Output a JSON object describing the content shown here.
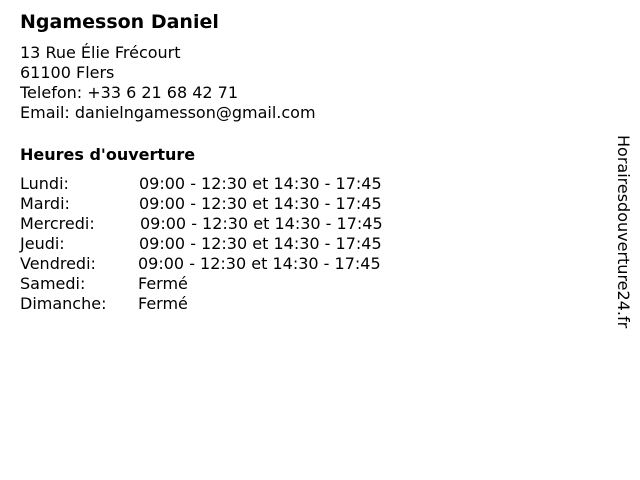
{
  "business": {
    "name": "Ngamesson Daniel",
    "address_line1": "13 Rue Élie Frécourt",
    "address_line2": "61100 Flers",
    "phone": "Telefon: +33 6 21 68 42 71",
    "email": "Email: danielngamesson@gmail.com"
  },
  "hours": {
    "heading": "Heures d'ouverture",
    "days": [
      {
        "day": "Lundi:",
        "time": "09:00 - 12:30 et 14:30 - 17:45"
      },
      {
        "day": "Mardi:",
        "time": "09:00 - 12:30 et 14:30 - 17:45"
      },
      {
        "day": "Mercredi:",
        "time": "09:00 - 12:30 et 14:30 - 17:45"
      },
      {
        "day": "Jeudi:",
        "time": "09:00 - 12:30 et 14:30 - 17:45"
      },
      {
        "day": "Vendredi:",
        "time": "09:00 - 12:30 et 14:30 - 17:45"
      },
      {
        "day": "Samedi:",
        "time": "Fermé"
      },
      {
        "day": "Dimanche:",
        "time": "Fermé"
      }
    ]
  },
  "watermark": "Horairesdouverture24.fr"
}
